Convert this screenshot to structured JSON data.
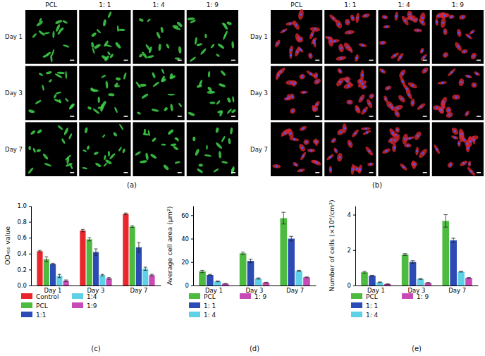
{
  "image_panels": [
    {
      "label": "(a)",
      "columns": [
        "PCL",
        "1: 1",
        "1: 4",
        "1: 9"
      ],
      "rows": [
        "Day 1",
        "Day 3",
        "Day 7"
      ]
    },
    {
      "label": "(b)",
      "columns": [
        "PCL",
        "1: 1",
        "1: 4",
        "1: 9"
      ],
      "rows": [
        "Day 1",
        "Day 3",
        "Day 7"
      ]
    }
  ],
  "chart_data": [
    {
      "type": "bar",
      "title": "(c)",
      "y_label": "OD₄₅₀ value",
      "categories": [
        "Day 1",
        "Day 3",
        "Day 7"
      ],
      "ylim": [
        0,
        1.0
      ],
      "yticks": [
        {
          "value": 0,
          "label": "0.0"
        },
        0.2,
        0.4,
        0.6,
        0.8,
        {
          "value": 1.0,
          "label": "1.0"
        }
      ],
      "series": [
        {
          "name": "Control",
          "color": "#e8262b",
          "values": [
            0.43,
            0.69,
            0.9
          ],
          "errors": [
            0.01,
            0.015,
            0.01
          ]
        },
        {
          "name": "PCL",
          "color": "#4dbb3f",
          "values": [
            0.33,
            0.58,
            0.74
          ],
          "errors": [
            0.03,
            0.02,
            0.01
          ]
        },
        {
          "name": "1:1",
          "color": "#2c4bb5",
          "values": [
            0.27,
            0.42,
            0.48
          ],
          "errors": [
            0.01,
            0.04,
            0.06
          ]
        },
        {
          "name": "1:4",
          "color": "#5ed1e6",
          "values": [
            0.12,
            0.13,
            0.21
          ],
          "errors": [
            0.02,
            0.01,
            0.02
          ]
        },
        {
          "name": "1:9",
          "color": "#c84ab6",
          "values": [
            0.06,
            0.09,
            0.13
          ],
          "errors": [
            0.01,
            0.01,
            0.01
          ]
        }
      ]
    },
    {
      "type": "bar",
      "title": "(d)",
      "y_label": "Average cell area (μm²)",
      "categories": [
        "Day 1",
        "Day 3",
        "Day 7"
      ],
      "ylim": [
        0,
        68
      ],
      "yticks": [
        0,
        20,
        40,
        60
      ],
      "series": [
        {
          "name": "PCL",
          "color": "#4dbb3f",
          "values": [
            12,
            27.5,
            57.5
          ],
          "errors": [
            1,
            1,
            5
          ]
        },
        {
          "name": "1: 1",
          "color": "#2c4bb5",
          "values": [
            9,
            21,
            40
          ],
          "errors": [
            0.5,
            1.5,
            2
          ]
        },
        {
          "name": "1: 4",
          "color": "#5ed1e6",
          "values": [
            3.5,
            6,
            12.5
          ],
          "errors": [
            0.3,
            0.5,
            0.5
          ]
        },
        {
          "name": "1: 9",
          "color": "#c84ab6",
          "values": [
            1.5,
            2.5,
            7
          ],
          "errors": [
            0.2,
            0.3,
            0.3
          ]
        }
      ]
    },
    {
      "type": "bar",
      "title": "(e)",
      "y_label": "Number of cells (×10⁴/cm²)",
      "categories": [
        "Day 1",
        "Day 3",
        "Day 7"
      ],
      "ylim": [
        0,
        4.5
      ],
      "yticks": [
        0,
        2,
        4
      ],
      "series": [
        {
          "name": "PCL",
          "color": "#4dbb3f",
          "values": [
            0.75,
            1.75,
            3.65
          ],
          "errors": [
            0.05,
            0.05,
            0.35
          ]
        },
        {
          "name": "1: 1",
          "color": "#2c4bb5",
          "values": [
            0.55,
            1.33,
            2.55
          ],
          "errors": [
            0.03,
            0.07,
            0.12
          ]
        },
        {
          "name": "1: 4",
          "color": "#5ed1e6",
          "values": [
            0.18,
            0.37,
            0.78
          ],
          "errors": [
            0.02,
            0.02,
            0.02
          ]
        },
        {
          "name": "1: 9",
          "color": "#c84ab6",
          "values": [
            0.08,
            0.15,
            0.43
          ],
          "errors": [
            0.01,
            0.02,
            0.02
          ]
        }
      ]
    }
  ]
}
